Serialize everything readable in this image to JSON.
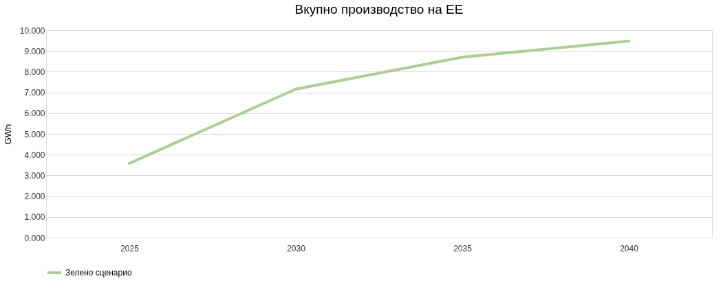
{
  "chart_data": {
    "type": "line",
    "title": "Вкупно производство на ЕЕ",
    "ylabel": "GWh",
    "categories": [
      "2025",
      "2030",
      "2035",
      "2040"
    ],
    "series": [
      {
        "name": "Зелено сценарио",
        "color": "#a9d18e",
        "values": [
          3.58,
          7.16,
          8.7,
          9.48
        ]
      }
    ],
    "ylim": [
      0,
      10
    ],
    "yticks": [
      {
        "value": 0,
        "label": "0.000"
      },
      {
        "value": 1,
        "label": "1.000"
      },
      {
        "value": 2,
        "label": "2.000"
      },
      {
        "value": 3,
        "label": "3.000"
      },
      {
        "value": 4,
        "label": "4.000"
      },
      {
        "value": 5,
        "label": "5.000"
      },
      {
        "value": 6,
        "label": "6.000"
      },
      {
        "value": 7,
        "label": "7.000"
      },
      {
        "value": 8,
        "label": "8.000"
      },
      {
        "value": 9,
        "label": "9.000"
      },
      {
        "value": 10,
        "label": "10.000"
      }
    ],
    "grid": "y",
    "legend": "bottom",
    "marker": "none",
    "line_style": "solid"
  }
}
